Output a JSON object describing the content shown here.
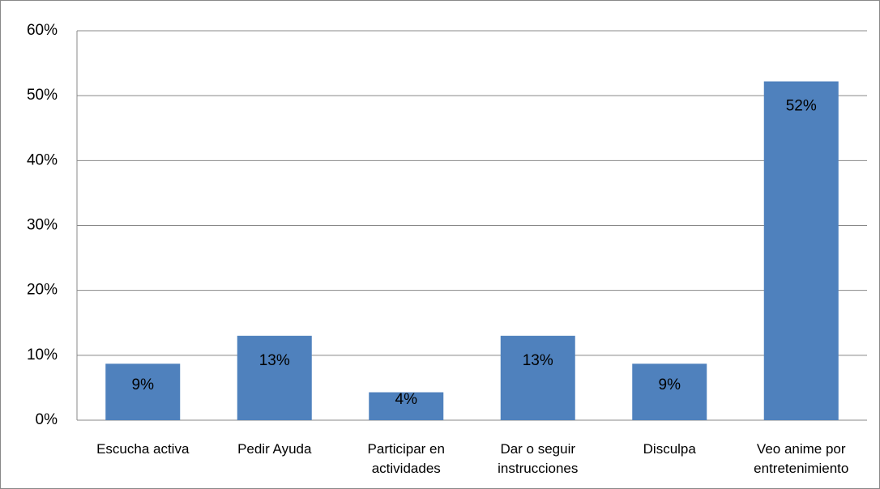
{
  "chart_data": {
    "type": "bar",
    "categories": [
      "Escucha activa",
      "Pedir Ayuda",
      "Participar en actividades",
      "Dar o seguir instrucciones",
      "Disculpa",
      "Veo anime por entretenimiento"
    ],
    "values": [
      8.7,
      13.0,
      4.3,
      13.0,
      8.7,
      52.2
    ],
    "value_labels": [
      "9%",
      "13%",
      "4%",
      "13%",
      "9%",
      "52%"
    ],
    "color": "#4f81bd",
    "ylim": [
      0,
      60
    ],
    "yticks": [
      {
        "value": 0,
        "label": "0%"
      },
      {
        "value": 10,
        "label": "10%"
      },
      {
        "value": 20,
        "label": "20%"
      },
      {
        "value": 30,
        "label": "30%"
      },
      {
        "value": 40,
        "label": "40%"
      },
      {
        "value": 50,
        "label": "50%"
      },
      {
        "value": 60,
        "label": "60%"
      }
    ],
    "grid": true
  }
}
